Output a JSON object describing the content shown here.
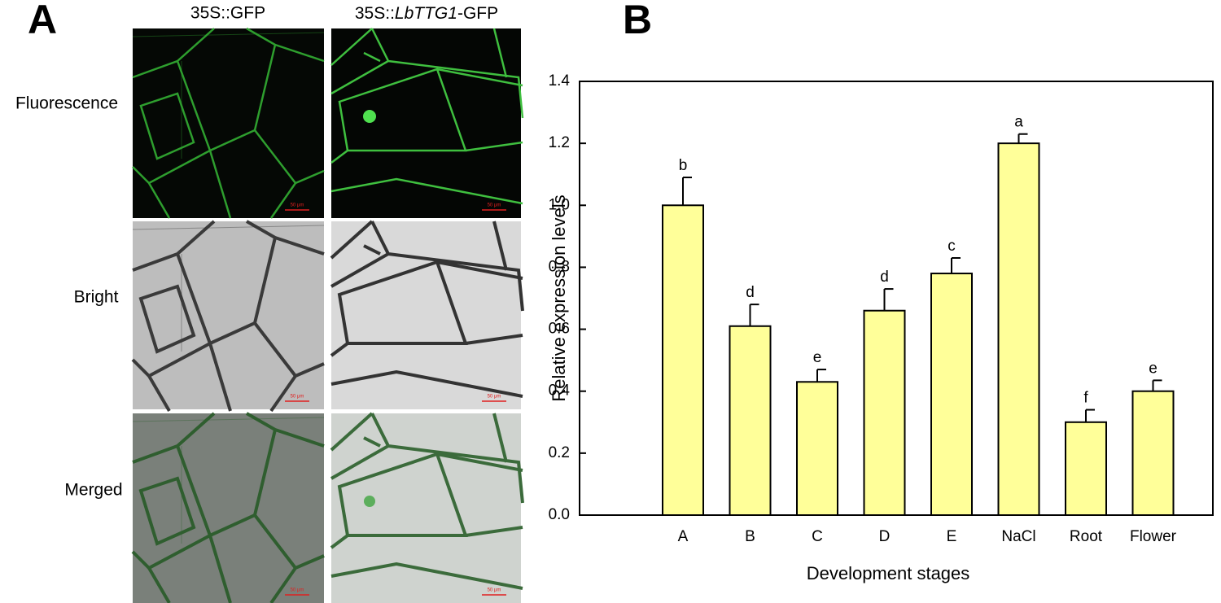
{
  "panel_labels": [
    "A",
    "B"
  ],
  "micrograph_panel": {
    "columns": [
      [
        "35S::GFP"
      ],
      [
        "35S::",
        "LbTTG1",
        "-GFP"
      ]
    ],
    "rows": [
      "Fluorescence",
      "Bright",
      "Merged"
    ],
    "scale_bar": "50 μm"
  },
  "chart_data": {
    "type": "bar",
    "categories": [
      "A",
      "B",
      "C",
      "D",
      "E",
      "NaCl",
      "Root",
      "Flower"
    ],
    "values": [
      1.0,
      0.61,
      0.43,
      0.66,
      0.78,
      1.2,
      0.3,
      0.4
    ],
    "errors": [
      0.09,
      0.07,
      0.04,
      0.07,
      0.05,
      0.03,
      0.04,
      0.035
    ],
    "annotations": [
      "b",
      "d",
      "e",
      "d",
      "c",
      "a",
      "f",
      "e"
    ],
    "color": "#ffff99",
    "ylim": [
      0,
      1.4
    ],
    "yticks": [
      {
        "value": 0,
        "label": "0.0"
      },
      {
        "value": 0.2,
        "label": "0.2"
      },
      {
        "value": 0.4,
        "label": "0.4"
      },
      {
        "value": 0.6,
        "label": "0.6"
      },
      {
        "value": 0.8,
        "label": "0.8"
      },
      {
        "value": 1,
        "label": "1.0"
      },
      {
        "value": 1.2,
        "label": "1.2"
      },
      {
        "value": 1.4,
        "label": "1.4"
      }
    ],
    "xlabel": "Development stages",
    "ylabel": "Relative expression  levels",
    "grid": false
  }
}
